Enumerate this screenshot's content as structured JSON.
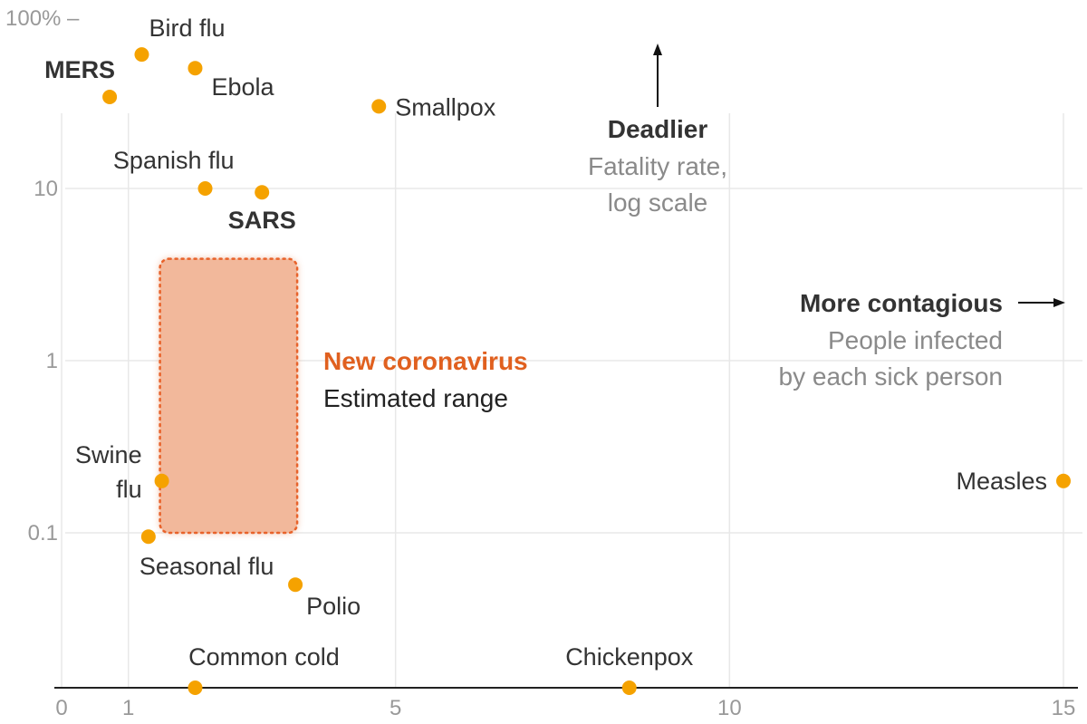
{
  "colors": {
    "dot": "#f5a200",
    "range_fill": "#f2b89b",
    "range_border": "#e8622a",
    "highlight_text": "#e0601f",
    "grid": "#e8e8e8",
    "axis": "#222222"
  },
  "chart_data": {
    "type": "scatter",
    "x_scale": "linear",
    "y_scale": "log",
    "xlim": [
      0,
      15
    ],
    "ylim": [
      0.01,
      100
    ],
    "grid": true,
    "x_ticks": [
      {
        "value": 0,
        "label": "0"
      },
      {
        "value": 1,
        "label": "1"
      },
      {
        "value": 5,
        "label": "5"
      },
      {
        "value": 10,
        "label": "10"
      },
      {
        "value": 15,
        "label": "15"
      }
    ],
    "y_ticks": [
      {
        "value": 100,
        "label": "100% –"
      },
      {
        "value": 10,
        "label": "10"
      },
      {
        "value": 1,
        "label": "1"
      },
      {
        "value": 0.1,
        "label": "0.1"
      }
    ],
    "points": [
      {
        "name": "Bird flu",
        "x": 1.2,
        "y": 60,
        "bold": false
      },
      {
        "name": "MERS",
        "x": 0.72,
        "y": 34,
        "bold": true
      },
      {
        "name": "Ebola",
        "x": 2.0,
        "y": 50,
        "bold": false
      },
      {
        "name": "Smallpox",
        "x": 4.75,
        "y": 30,
        "bold": false
      },
      {
        "name": "Spanish flu",
        "x": 2.15,
        "y": 10,
        "bold": false
      },
      {
        "name": "SARS",
        "x": 3.0,
        "y": 9.5,
        "bold": true
      },
      {
        "name": "Swine flu",
        "x": 1.5,
        "y": 0.2,
        "bold": false
      },
      {
        "name": "Seasonal flu",
        "x": 1.3,
        "y": 0.095,
        "bold": false
      },
      {
        "name": "Polio",
        "x": 3.5,
        "y": 0.05,
        "bold": false
      },
      {
        "name": "Measles",
        "x": 15.0,
        "y": 0.2,
        "bold": false
      },
      {
        "name": "Common cold",
        "x": 2.0,
        "y": 0.01,
        "bold": false
      },
      {
        "name": "Chickenpox",
        "x": 8.5,
        "y": 0.01,
        "bold": false
      }
    ],
    "range": {
      "x_min": 1.5,
      "x_max": 3.5,
      "y_min": 0.1,
      "y_max": 4,
      "title": "New coronavirus",
      "subtitle": "Estimated range"
    },
    "annotations": {
      "y_axis_title": "Deadlier",
      "y_axis_line1": "Fatality rate,",
      "y_axis_line2": "log scale",
      "x_axis_title": "More contagious",
      "x_axis_line1": "People infected",
      "x_axis_line2": "by each sick person"
    }
  }
}
